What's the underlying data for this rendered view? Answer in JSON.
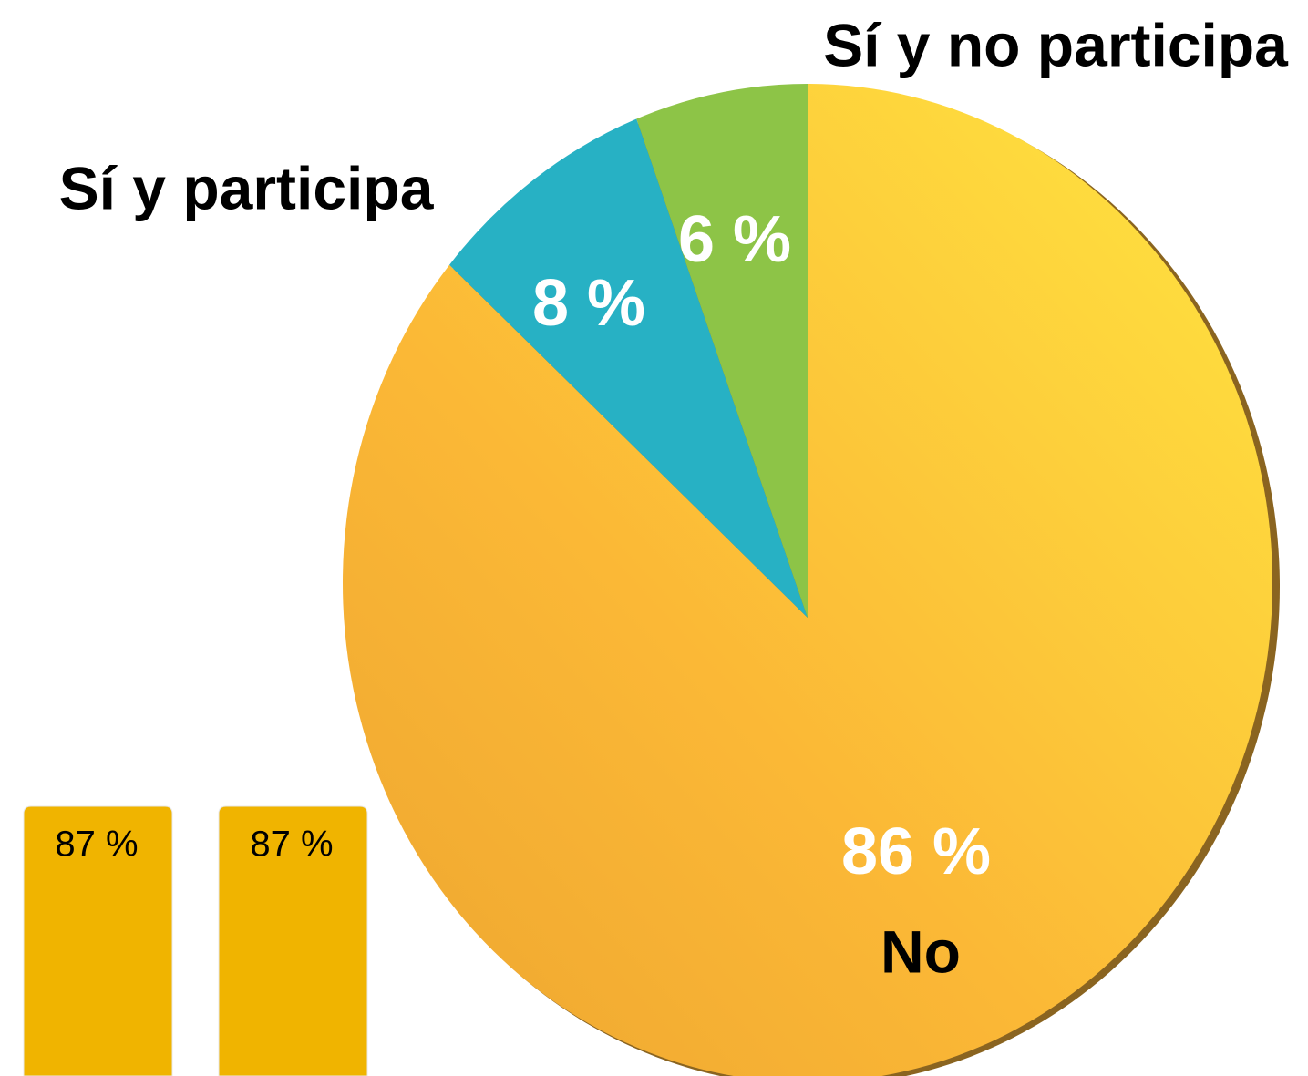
{
  "chart_data": [
    {
      "type": "pie",
      "categories": [
        "No",
        "Sí y participa",
        "Sí y no participa"
      ],
      "values": [
        86,
        8,
        6
      ],
      "value_labels": [
        "86 %",
        "8 %",
        "6 %"
      ],
      "colors": [
        "#fbc338",
        "#27b1c4",
        "#8dc447"
      ]
    },
    {
      "type": "bar",
      "values": [
        87,
        87
      ],
      "value_labels": [
        "87 %",
        "87 %"
      ],
      "color": "#f0b400"
    }
  ]
}
